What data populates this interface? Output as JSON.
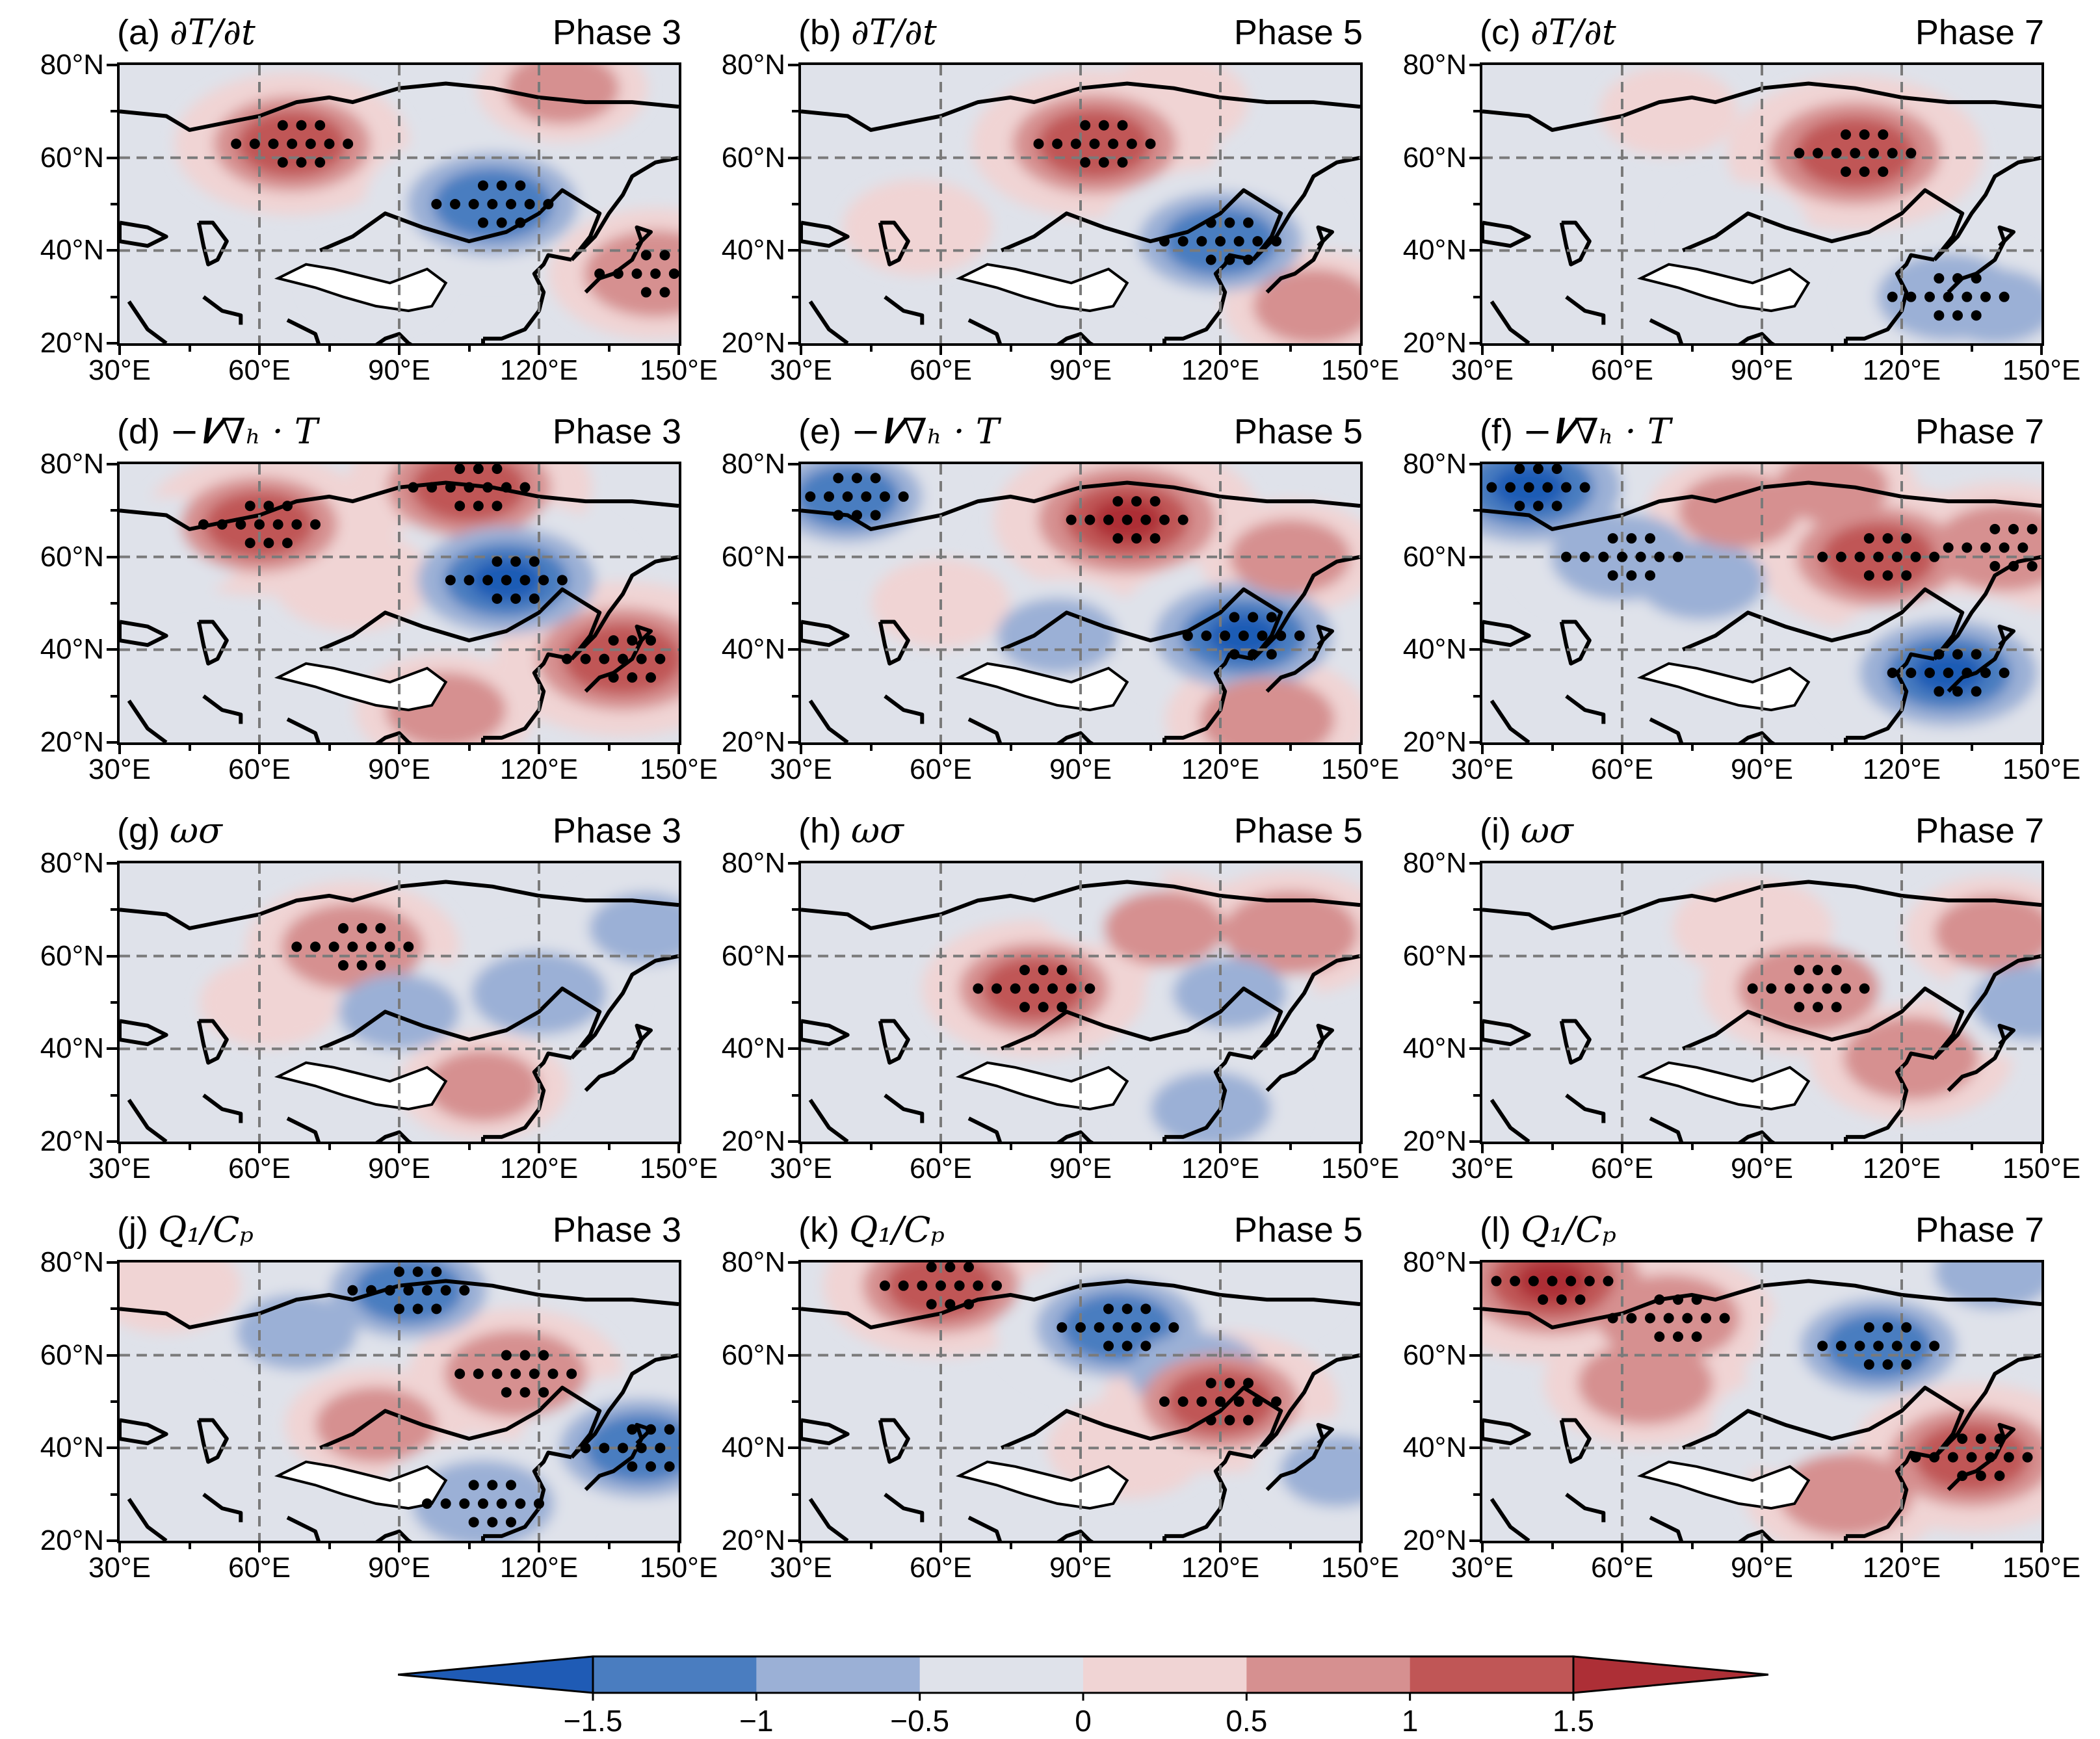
{
  "figure": {
    "panels": [
      {
        "id": "a",
        "letter": "(a)",
        "variable": "∂T/∂t",
        "phase": "Phase 3"
      },
      {
        "id": "b",
        "letter": "(b)",
        "variable": "∂T/∂t",
        "phase": "Phase 5"
      },
      {
        "id": "c",
        "letter": "(c)",
        "variable": "∂T/∂t",
        "phase": "Phase 7"
      },
      {
        "id": "d",
        "letter": "(d)",
        "variable": "−𝑽∇ₕ · T",
        "phase": "Phase 3"
      },
      {
        "id": "e",
        "letter": "(e)",
        "variable": "−𝑽∇ₕ · T",
        "phase": "Phase 5"
      },
      {
        "id": "f",
        "letter": "(f)",
        "variable": "−𝑽∇ₕ · T",
        "phase": "Phase 7"
      },
      {
        "id": "g",
        "letter": "(g)",
        "variable": "ωσ",
        "phase": "Phase 3"
      },
      {
        "id": "h",
        "letter": "(h)",
        "variable": "ωσ",
        "phase": "Phase 5"
      },
      {
        "id": "i",
        "letter": "(i)",
        "variable": "ωσ",
        "phase": "Phase 7"
      },
      {
        "id": "j",
        "letter": "(j)",
        "variable": "Q₁/Cₚ",
        "phase": "Phase 3"
      },
      {
        "id": "k",
        "letter": "(k)",
        "variable": "Q₁/Cₚ",
        "phase": "Phase 5"
      },
      {
        "id": "l",
        "letter": "(l)",
        "variable": "Q₁/Cₚ",
        "phase": "Phase 7"
      }
    ],
    "lat_labels": [
      "80°N",
      "60°N",
      "40°N",
      "20°N"
    ],
    "lon_labels": [
      "30°E",
      "60°E",
      "90°E",
      "120°E",
      "150°E"
    ],
    "map_extent": {
      "lon_min": 30,
      "lon_max": 150,
      "lat_min": 20,
      "lat_max": 80
    },
    "colorbar": {
      "levels": [
        -1.5,
        -1,
        -0.5,
        0,
        0.5,
        1,
        1.5
      ],
      "tick_labels": [
        "−1.5",
        "−1",
        "−0.5",
        "0",
        "0.5",
        "1",
        "1.5"
      ],
      "colors": [
        "#1f5bb5",
        "#4a7dc0",
        "#9bb0d6",
        "#dfe2ea",
        "#f0d4d4",
        "#d69090",
        "#c05656",
        "#ad2f36"
      ],
      "extend": "both"
    },
    "anomaly_centers": {
      "a": [
        [
          67,
          63,
          1.1
        ],
        [
          110,
          50,
          -1.3
        ],
        [
          145,
          35,
          0.9
        ],
        [
          125,
          75,
          0.5
        ],
        [
          85,
          33,
          -0.2
        ]
      ],
      "b": [
        [
          93,
          63,
          1.2
        ],
        [
          120,
          42,
          -1.2
        ],
        [
          110,
          72,
          0.3
        ],
        [
          140,
          28,
          0.6
        ],
        [
          55,
          45,
          0.3
        ]
      ],
      "c": [
        [
          110,
          61,
          1.3
        ],
        [
          130,
          30,
          -0.9
        ],
        [
          140,
          28,
          -0.6
        ],
        [
          70,
          70,
          0.2
        ],
        [
          85,
          45,
          -0.2
        ]
      ],
      "d": [
        [
          60,
          67,
          1.1
        ],
        [
          105,
          75,
          1.2
        ],
        [
          113,
          55,
          -1.4
        ],
        [
          138,
          38,
          1.3
        ],
        [
          100,
          27,
          0.6
        ],
        [
          80,
          55,
          0.4
        ],
        [
          40,
          62,
          -0.4
        ]
      ],
      "e": [
        [
          40,
          73,
          -1.0
        ],
        [
          100,
          68,
          1.4
        ],
        [
          125,
          43,
          -1.4
        ],
        [
          130,
          25,
          0.8
        ],
        [
          85,
          43,
          -0.6
        ],
        [
          135,
          60,
          0.6
        ],
        [
          60,
          50,
          0.2
        ]
      ],
      "f": [
        [
          40,
          75,
          -1.5
        ],
        [
          60,
          60,
          -0.9
        ],
        [
          77,
          55,
          -0.7
        ],
        [
          115,
          60,
          1.2
        ],
        [
          142,
          62,
          0.9
        ],
        [
          130,
          35,
          -1.4
        ],
        [
          85,
          70,
          0.6
        ],
        [
          105,
          75,
          0.5
        ]
      ],
      "g": [
        [
          80,
          62,
          0.9
        ],
        [
          90,
          48,
          -0.6
        ],
        [
          120,
          52,
          -0.8
        ],
        [
          108,
          32,
          0.5
        ],
        [
          143,
          66,
          -0.5
        ],
        [
          62,
          50,
          0.2
        ]
      ],
      "h": [
        [
          80,
          53,
          1.0
        ],
        [
          108,
          66,
          0.6
        ],
        [
          135,
          65,
          0.8
        ],
        [
          118,
          27,
          -0.6
        ],
        [
          122,
          52,
          -0.5
        ],
        [
          95,
          72,
          -0.2
        ]
      ],
      "i": [
        [
          100,
          53,
          0.9
        ],
        [
          122,
          38,
          0.8
        ],
        [
          115,
          60,
          -0.4
        ],
        [
          140,
          65,
          0.6
        ],
        [
          88,
          66,
          0.4
        ],
        [
          148,
          50,
          -0.6
        ]
      ],
      "j": [
        [
          92,
          74,
          -1.1
        ],
        [
          68,
          65,
          -0.6
        ],
        [
          115,
          56,
          0.9
        ],
        [
          85,
          45,
          0.6
        ],
        [
          142,
          40,
          -1.2
        ],
        [
          108,
          28,
          -0.9
        ],
        [
          40,
          75,
          0.3
        ]
      ],
      "k": [
        [
          60,
          75,
          1.1
        ],
        [
          98,
          66,
          -1.2
        ],
        [
          115,
          56,
          -0.8
        ],
        [
          120,
          50,
          1.1
        ],
        [
          100,
          40,
          0.4
        ],
        [
          145,
          35,
          -0.5
        ],
        [
          130,
          75,
          -0.3
        ]
      ],
      "l": [
        [
          45,
          76,
          1.4
        ],
        [
          70,
          68,
          0.9
        ],
        [
          65,
          54,
          0.8
        ],
        [
          115,
          62,
          -1.1
        ],
        [
          135,
          38,
          1.2
        ],
        [
          108,
          30,
          0.8
        ],
        [
          140,
          78,
          -0.6
        ],
        [
          95,
          45,
          -0.3
        ]
      ]
    }
  }
}
